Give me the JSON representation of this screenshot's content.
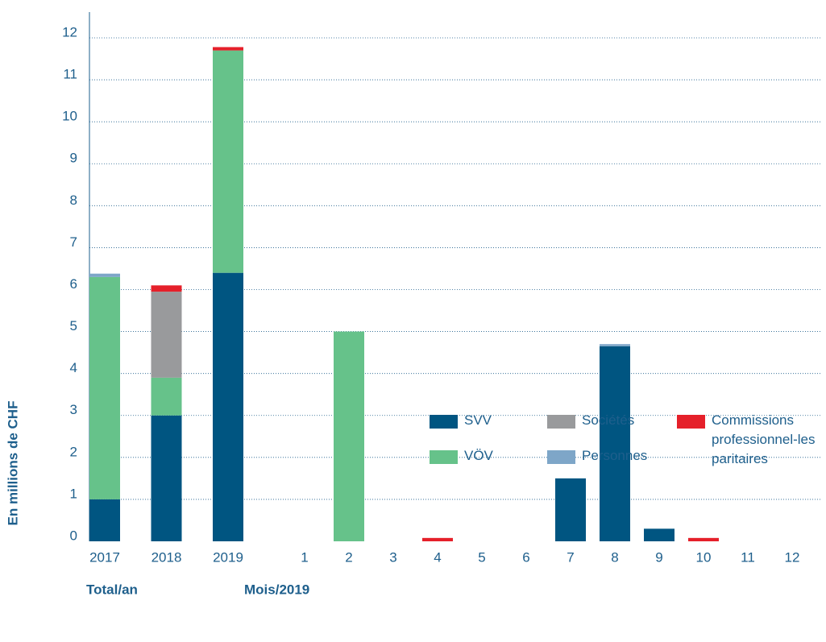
{
  "chart_data": {
    "type": "stacked_bar",
    "y_label": "En millions de CHF",
    "group_labels": [
      "Total/an",
      "Mois/2019"
    ],
    "categories": [
      "2017",
      "2018",
      "2019",
      "1",
      "2",
      "3",
      "4",
      "5",
      "6",
      "7",
      "8",
      "9",
      "10",
      "11",
      "12"
    ],
    "series": [
      {
        "name": "SVV",
        "color": "#005581",
        "values": [
          1.0,
          3.0,
          6.4,
          0,
          0,
          0,
          0,
          0,
          0,
          1.5,
          4.65,
          0.3,
          0,
          0,
          0
        ]
      },
      {
        "name": "VÖV",
        "color": "#66c28a",
        "values": [
          5.3,
          0.9,
          5.3,
          0,
          5.0,
          0,
          0,
          0,
          0,
          0,
          0,
          0,
          0,
          0,
          0
        ]
      },
      {
        "name": "Sociétés",
        "color": "#999a9c",
        "values": [
          0,
          2.05,
          0,
          0,
          0,
          0,
          0,
          0,
          0,
          0,
          0,
          0,
          0,
          0,
          0
        ]
      },
      {
        "name": "Personnes",
        "color": "#7ea6c8",
        "values": [
          0.08,
          0,
          0,
          0,
          0,
          0,
          0,
          0,
          0,
          0,
          0.05,
          0,
          0,
          0,
          0
        ]
      },
      {
        "name": "Commissions professionnel-les paritaires",
        "color": "#e5202a",
        "values": [
          0,
          0.15,
          0.08,
          0,
          0,
          0,
          0.08,
          0,
          0,
          0,
          0,
          0,
          0.08,
          0,
          0
        ]
      }
    ],
    "ylim": [
      0,
      12
    ],
    "yticks": [
      0,
      1,
      2,
      3,
      4,
      5,
      6,
      7,
      8,
      9,
      10,
      11,
      12
    ],
    "grid": true
  }
}
